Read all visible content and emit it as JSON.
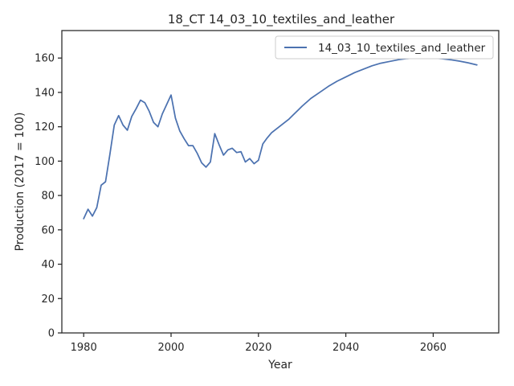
{
  "chart_data": {
    "type": "line",
    "title": "18_CT 14_03_10_textiles_and_leather",
    "xlabel": "Year",
    "ylabel": "Production (2017 = 100)",
    "xlim": [
      1975,
      2075
    ],
    "ylim": [
      0,
      176
    ],
    "xticks": [
      1980,
      2000,
      2020,
      2040,
      2060
    ],
    "yticks": [
      0,
      20,
      40,
      60,
      80,
      100,
      120,
      140,
      160
    ],
    "grid": false,
    "legend_position": "top-right",
    "series": [
      {
        "name": "14_03_10_textiles_and_leather",
        "color": "#4c72b0",
        "x": [
          1980,
          1981,
          1982,
          1983,
          1984,
          1985,
          1986,
          1987,
          1988,
          1989,
          1990,
          1991,
          1992,
          1993,
          1994,
          1995,
          1996,
          1997,
          1998,
          1999,
          2000,
          2001,
          2002,
          2003,
          2004,
          2005,
          2006,
          2007,
          2008,
          2009,
          2010,
          2011,
          2012,
          2013,
          2014,
          2015,
          2016,
          2017,
          2018,
          2019,
          2020,
          2021,
          2022,
          2023,
          2024,
          2025,
          2026,
          2027,
          2028,
          2029,
          2030,
          2032,
          2034,
          2036,
          2038,
          2040,
          2042,
          2044,
          2046,
          2048,
          2050,
          2052,
          2054,
          2056,
          2058,
          2060,
          2062,
          2064,
          2066,
          2068,
          2070
        ],
        "y": [
          66.5,
          72,
          68,
          73,
          86,
          88,
          104,
          121,
          126.5,
          121,
          118,
          126,
          130.5,
          135.5,
          134,
          129,
          122.5,
          120,
          127.5,
          133,
          138.5,
          125,
          117.5,
          113,
          109,
          109,
          104.5,
          99,
          96.5,
          99.5,
          116,
          109.5,
          103.5,
          106.5,
          107.5,
          105,
          105.5,
          99.5,
          101.5,
          98.5,
          100.5,
          110,
          113.5,
          116.5,
          118.5,
          120.5,
          122.5,
          124.5,
          127,
          129.5,
          132,
          136.5,
          140,
          143.5,
          146.5,
          149,
          151.5,
          153.5,
          155.5,
          157,
          158,
          159,
          159.7,
          160,
          160.2,
          160,
          159.6,
          159,
          158.2,
          157.2,
          156
        ]
      }
    ]
  }
}
